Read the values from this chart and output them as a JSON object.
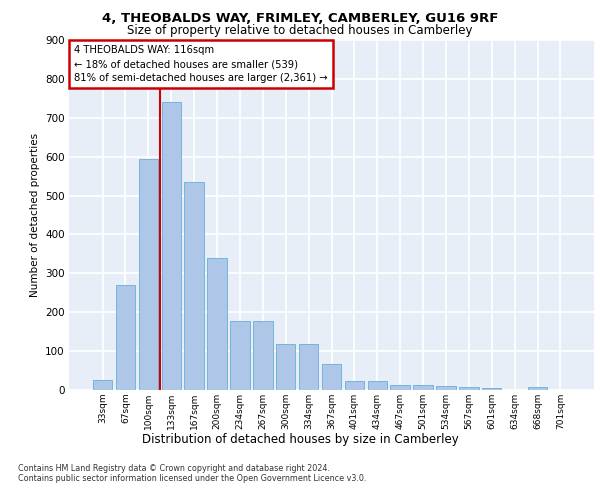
{
  "title": "4, THEOBALDS WAY, FRIMLEY, CAMBERLEY, GU16 9RF",
  "subtitle": "Size of property relative to detached houses in Camberley",
  "xlabel": "Distribution of detached houses by size in Camberley",
  "ylabel": "Number of detached properties",
  "categories": [
    "33sqm",
    "67sqm",
    "100sqm",
    "133sqm",
    "167sqm",
    "200sqm",
    "234sqm",
    "267sqm",
    "300sqm",
    "334sqm",
    "367sqm",
    "401sqm",
    "434sqm",
    "467sqm",
    "501sqm",
    "534sqm",
    "567sqm",
    "601sqm",
    "634sqm",
    "668sqm",
    "701sqm"
  ],
  "values": [
    25,
    270,
    595,
    740,
    535,
    340,
    178,
    178,
    119,
    119,
    68,
    23,
    23,
    14,
    14,
    10,
    8,
    5,
    0,
    8,
    0
  ],
  "bar_color": "#aec6e8",
  "bar_edge_color": "#6aaed6",
  "vline_x": 2.5,
  "vline_color": "#cc0000",
  "annotation_line1": "4 THEOBALDS WAY: 116sqm",
  "annotation_line2": "← 18% of detached houses are smaller (539)",
  "annotation_line3": "81% of semi-detached houses are larger (2,361) →",
  "annotation_box_color": "#cc0000",
  "ylim": [
    0,
    900
  ],
  "yticks": [
    0,
    100,
    200,
    300,
    400,
    500,
    600,
    700,
    800,
    900
  ],
  "background_color": "#e8eef8",
  "grid_color": "#ffffff",
  "footer_line1": "Contains HM Land Registry data © Crown copyright and database right 2024.",
  "footer_line2": "Contains public sector information licensed under the Open Government Licence v3.0."
}
